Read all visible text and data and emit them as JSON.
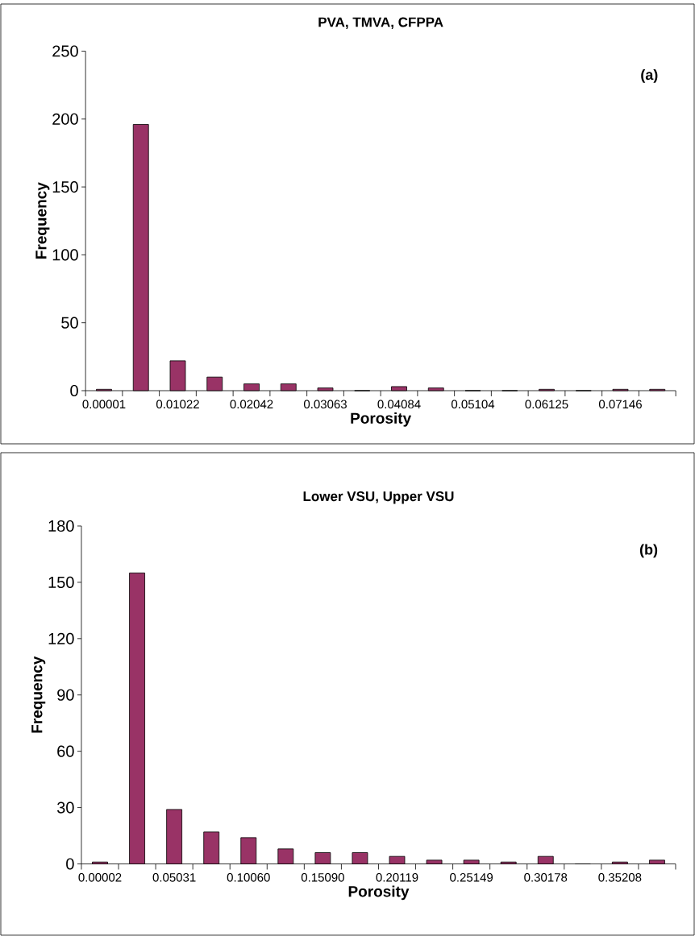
{
  "chart_data": [
    {
      "type": "bar",
      "title": "PVA, TMVA, CFPPA",
      "xlabel": "Porosity",
      "ylabel": "Frequency",
      "annotations": [
        "(a)"
      ],
      "color": "#993366",
      "categories": [
        "0.00001",
        null,
        "0.01022",
        null,
        "0.02042",
        null,
        "0.03063",
        null,
        "0.04084",
        null,
        "0.05104",
        null,
        "0.06125",
        null,
        "0.07146",
        null
      ],
      "values": [
        1,
        196,
        22,
        10,
        5,
        5,
        2,
        0,
        3,
        2,
        0,
        0,
        1,
        0,
        1,
        1
      ],
      "ylim": [
        0,
        250
      ],
      "yticks": [
        0,
        50,
        100,
        150,
        200,
        250
      ]
    },
    {
      "type": "bar",
      "title": "Lower VSU, Upper VSU",
      "xlabel": "Porosity",
      "ylabel": "Frequency",
      "annotations": [
        "(b)"
      ],
      "color": "#993366",
      "categories": [
        "0.00002",
        null,
        "0.05031",
        null,
        "0.10060",
        null,
        "0.15090",
        null,
        "0.20119",
        null,
        "0.25149",
        null,
        "0.30178",
        null,
        "0.35208",
        null
      ],
      "values": [
        1,
        155,
        29,
        17,
        14,
        8,
        6,
        6,
        4,
        2,
        2,
        1,
        4,
        0,
        1,
        2
      ],
      "ylim": [
        0,
        180
      ],
      "yticks": [
        0,
        30,
        60,
        90,
        120,
        150,
        180
      ]
    }
  ]
}
